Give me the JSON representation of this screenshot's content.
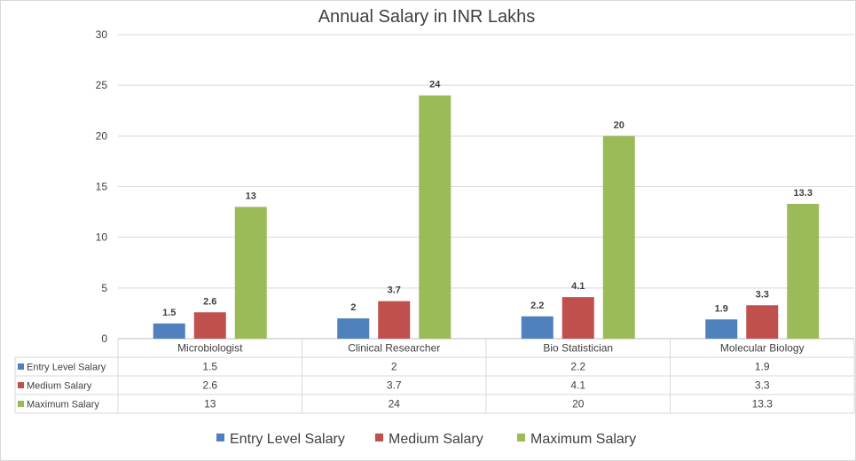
{
  "chart_data": {
    "type": "bar",
    "title": "Annual Salary in INR Lakhs",
    "categories": [
      "Microbiologist",
      "Clinical Researcher",
      "Bio Statistician",
      "Molecular Biology"
    ],
    "series": [
      {
        "name": "Entry Level Salary",
        "color": "#4F81BD",
        "values": [
          1.5,
          2,
          2.2,
          1.9
        ]
      },
      {
        "name": "Medium Salary",
        "color": "#C0504D",
        "values": [
          2.6,
          3.7,
          4.1,
          3.3
        ]
      },
      {
        "name": "Maximum Salary",
        "color": "#9BBB59",
        "values": [
          13,
          24,
          20,
          13.3
        ]
      }
    ],
    "ylim": [
      0,
      30
    ],
    "yticks": [
      0,
      5,
      10,
      15,
      20,
      25,
      30
    ],
    "xlabel": "",
    "ylabel": "",
    "grid": true,
    "data_table": true,
    "legend": "bottom"
  }
}
